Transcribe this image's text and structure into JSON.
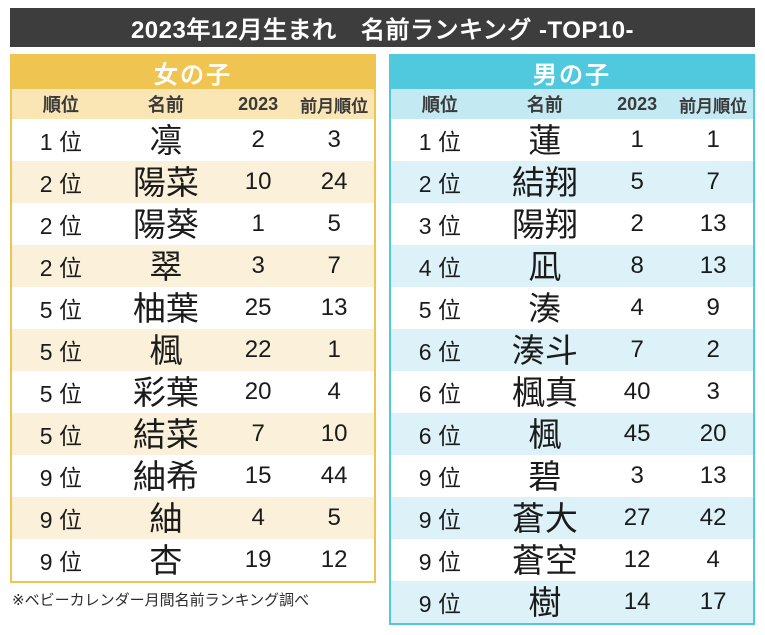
{
  "page_title": "2023年12月生まれ　名前ランキング -TOP10-",
  "footnote": "※ベビーカレンダー月間名前ランキング調べ",
  "rank_suffix": "位",
  "theme": {
    "title_bar_bg": "#3d3d3d",
    "girls": {
      "accent": "#f0c450",
      "col_header_bg": "#fae6b4",
      "stripe_bg": "#fbf0d9"
    },
    "boys": {
      "accent": "#50c8de",
      "col_header_bg": "#c3e9f2",
      "stripe_bg": "#dcf2f8"
    }
  },
  "chart_data": [
    {
      "type": "table",
      "group": "girls",
      "title": "女の子",
      "columns": [
        "順位",
        "名前",
        "2023",
        "前月順位"
      ],
      "rows": [
        {
          "rank": 1,
          "name": "凛",
          "count_2023": 2,
          "prev_month_rank": 3
        },
        {
          "rank": 2,
          "name": "陽菜",
          "count_2023": 10,
          "prev_month_rank": 24
        },
        {
          "rank": 2,
          "name": "陽葵",
          "count_2023": 1,
          "prev_month_rank": 5
        },
        {
          "rank": 2,
          "name": "翠",
          "count_2023": 3,
          "prev_month_rank": 7
        },
        {
          "rank": 5,
          "name": "柚葉",
          "count_2023": 25,
          "prev_month_rank": 13
        },
        {
          "rank": 5,
          "name": "楓",
          "count_2023": 22,
          "prev_month_rank": 1
        },
        {
          "rank": 5,
          "name": "彩葉",
          "count_2023": 20,
          "prev_month_rank": 4
        },
        {
          "rank": 5,
          "name": "結菜",
          "count_2023": 7,
          "prev_month_rank": 10
        },
        {
          "rank": 9,
          "name": "紬希",
          "count_2023": 15,
          "prev_month_rank": 44
        },
        {
          "rank": 9,
          "name": "紬",
          "count_2023": 4,
          "prev_month_rank": 5
        },
        {
          "rank": 9,
          "name": "杏",
          "count_2023": 19,
          "prev_month_rank": 12
        }
      ]
    },
    {
      "type": "table",
      "group": "boys",
      "title": "男の子",
      "columns": [
        "順位",
        "名前",
        "2023",
        "前月順位"
      ],
      "rows": [
        {
          "rank": 1,
          "name": "蓮",
          "count_2023": 1,
          "prev_month_rank": 1
        },
        {
          "rank": 2,
          "name": "結翔",
          "count_2023": 5,
          "prev_month_rank": 7
        },
        {
          "rank": 3,
          "name": "陽翔",
          "count_2023": 2,
          "prev_month_rank": 13
        },
        {
          "rank": 4,
          "name": "凪",
          "count_2023": 8,
          "prev_month_rank": 13
        },
        {
          "rank": 5,
          "name": "湊",
          "count_2023": 4,
          "prev_month_rank": 9
        },
        {
          "rank": 6,
          "name": "湊斗",
          "count_2023": 7,
          "prev_month_rank": 2
        },
        {
          "rank": 6,
          "name": "楓真",
          "count_2023": 40,
          "prev_month_rank": 3
        },
        {
          "rank": 6,
          "name": "楓",
          "count_2023": 45,
          "prev_month_rank": 20
        },
        {
          "rank": 9,
          "name": "碧",
          "count_2023": 3,
          "prev_month_rank": 13
        },
        {
          "rank": 9,
          "name": "蒼大",
          "count_2023": 27,
          "prev_month_rank": 42
        },
        {
          "rank": 9,
          "name": "蒼空",
          "count_2023": 12,
          "prev_month_rank": 4
        },
        {
          "rank": 9,
          "name": "樹",
          "count_2023": 14,
          "prev_month_rank": 17
        }
      ]
    }
  ]
}
